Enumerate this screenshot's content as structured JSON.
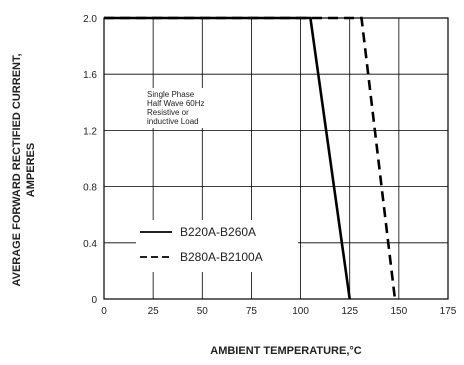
{
  "chart_data": {
    "type": "line",
    "xlabel": "AMBIENT TEMPERATURE,°C",
    "ylabel_lines": [
      "AVERAGE FORWARD RECTIFIED CURRENT,",
      "AMPERES"
    ],
    "xlim": [
      0,
      175
    ],
    "ylim": [
      0,
      2.0
    ],
    "x_ticks": [
      0,
      25,
      50,
      75,
      100,
      125,
      150,
      175
    ],
    "x_tick_labels": [
      "0",
      "25",
      "50",
      "75",
      "100",
      "125",
      "150",
      "175"
    ],
    "y_ticks": [
      0,
      0.4,
      0.8,
      1.2,
      1.6,
      2.0
    ],
    "y_tick_labels": [
      "0",
      "0.4",
      "0.8",
      "1.2",
      "1.6",
      "2.0"
    ],
    "grid": true,
    "annotation_lines": [
      "Single Phase",
      "Half Wave 60Hz",
      "Resistive or",
      "inductive Load"
    ],
    "legend_position": "bottom-left",
    "series": [
      {
        "name": "B220A-B260A",
        "style": "solid",
        "color": "#000000",
        "x": [
          0,
          105,
          125
        ],
        "y": [
          2.0,
          2.0,
          0
        ]
      },
      {
        "name": "B280A-B2100A",
        "style": "dashed",
        "color": "#000000",
        "x": [
          0,
          131,
          148
        ],
        "y": [
          2.0,
          2.0,
          0
        ]
      }
    ]
  }
}
